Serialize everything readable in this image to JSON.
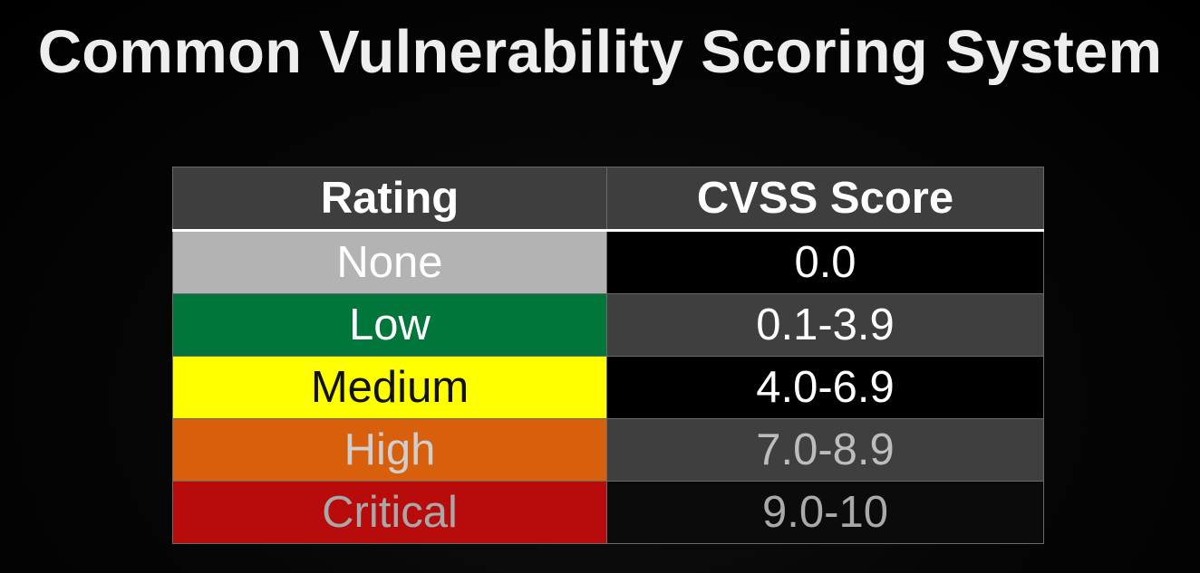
{
  "title": "Common Vulnerability Scoring System",
  "table": {
    "headers": {
      "rating": "Rating",
      "score": "CVSS Score"
    },
    "rows": [
      {
        "rating": "None",
        "score": "0.0",
        "rating_bg": "#b3b3b3",
        "rating_color": "#ffffff"
      },
      {
        "rating": "Low",
        "score": "0.1-3.9",
        "rating_bg": "#00763a",
        "rating_color": "#ffffff"
      },
      {
        "rating": "Medium",
        "score": "4.0-6.9",
        "rating_bg": "#ffff00",
        "rating_color": "#111111"
      },
      {
        "rating": "High",
        "score": "7.0-8.9",
        "rating_bg": "#d8600c",
        "rating_color": "#cfcfcf"
      },
      {
        "rating": "Critical",
        "score": "9.0-10",
        "rating_bg": "#b80c0c",
        "rating_color": "#a8a8a8"
      }
    ]
  }
}
